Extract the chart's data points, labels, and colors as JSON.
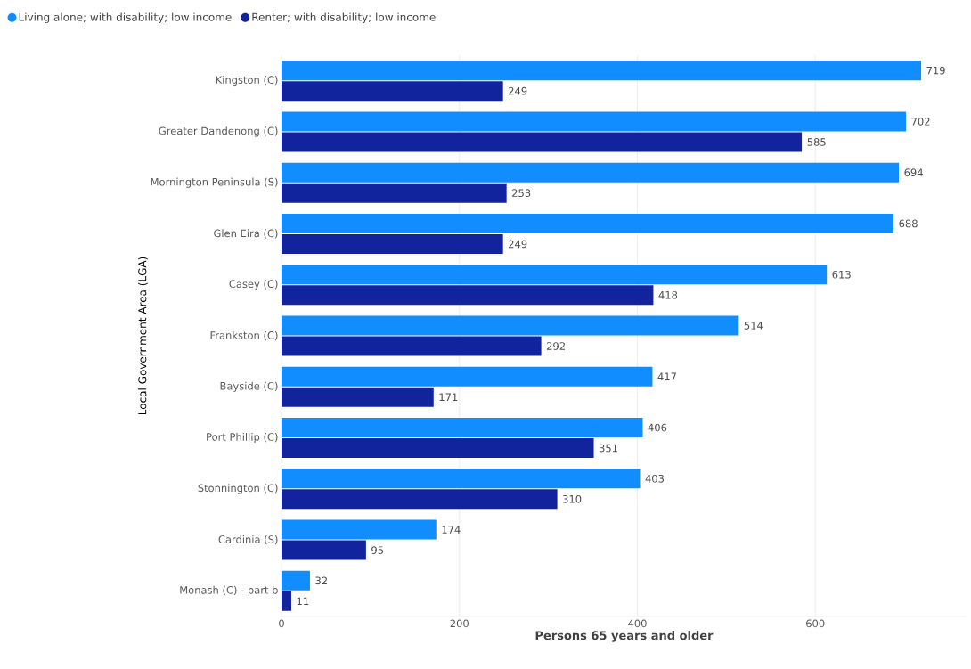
{
  "chart_data": {
    "type": "bar",
    "orientation": "horizontal",
    "xlabel": "Persons 65 years and older",
    "ylabel": "Local Government Area (LGA)",
    "categories": [
      "Kingston (C)",
      "Greater Dandenong (C)",
      "Mornington Peninsula (S)",
      "Glen Eira (C)",
      "Casey (C)",
      "Frankston (C)",
      "Bayside (C)",
      "Port Phillip (C)",
      "Stonnington (C)",
      "Cardinia (S)",
      "Monash (C) - part b"
    ],
    "series": [
      {
        "name": "Living alone; with disability; low income",
        "color": "#118dff",
        "values": [
          719,
          702,
          694,
          688,
          613,
          514,
          417,
          406,
          403,
          174,
          32
        ]
      },
      {
        "name": "Renter; with disability; low income",
        "color": "#12239e",
        "values": [
          249,
          585,
          253,
          249,
          418,
          292,
          171,
          351,
          310,
          95,
          11
        ]
      }
    ],
    "xlim": [
      0,
      770
    ],
    "xticks": [
      0,
      200,
      400,
      600
    ],
    "grid": "x",
    "legend": "top left",
    "data_labels": true
  }
}
